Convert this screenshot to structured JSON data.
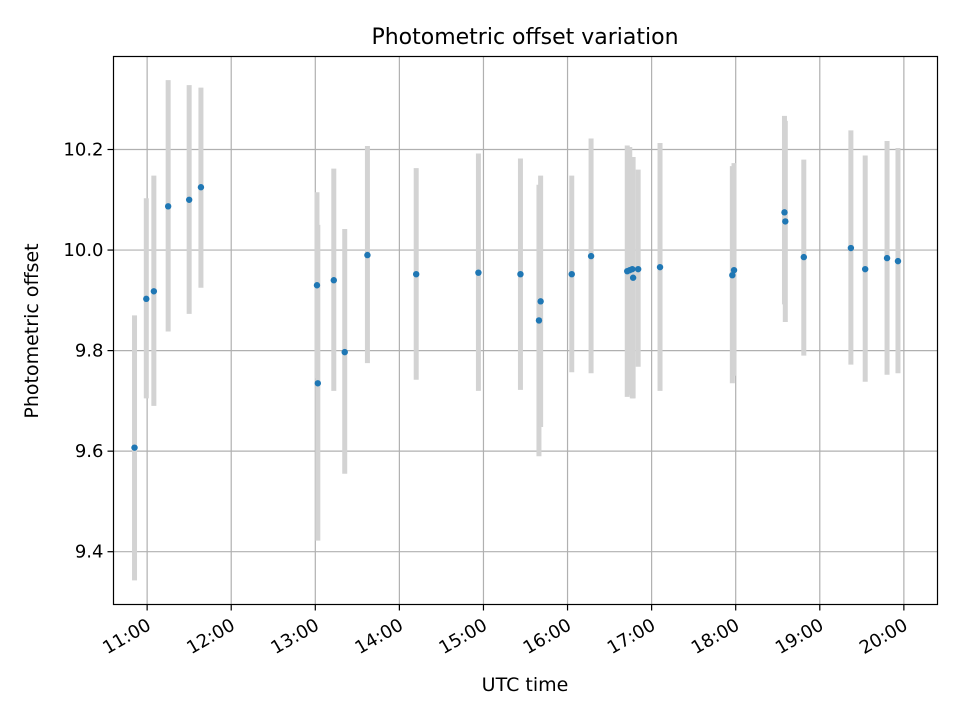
{
  "chart_data": {
    "type": "scatter",
    "title": "Photometric offset variation",
    "xlabel": "UTC time",
    "ylabel": "Photometric offset",
    "xlim_hours": [
      10.6,
      20.4
    ],
    "ylim": [
      9.295,
      10.385
    ],
    "grid": true,
    "x_ticks": [
      {
        "hour": 11,
        "label": "11:00"
      },
      {
        "hour": 12,
        "label": "12:00"
      },
      {
        "hour": 13,
        "label": "13:00"
      },
      {
        "hour": 14,
        "label": "14:00"
      },
      {
        "hour": 15,
        "label": "15:00"
      },
      {
        "hour": 16,
        "label": "16:00"
      },
      {
        "hour": 17,
        "label": "17:00"
      },
      {
        "hour": 18,
        "label": "18:00"
      },
      {
        "hour": 19,
        "label": "19:00"
      },
      {
        "hour": 20,
        "label": "20:00"
      }
    ],
    "y_ticks": [
      {
        "value": 9.4,
        "label": "9.4"
      },
      {
        "value": 9.6,
        "label": "9.6"
      },
      {
        "value": 9.8,
        "label": "9.8"
      },
      {
        "value": 10.0,
        "label": "10.0"
      },
      {
        "value": 10.2,
        "label": "10.2"
      }
    ],
    "colors": {
      "points": "#1f77b4",
      "errorbars": "#d3d3d3",
      "grid": "#b0b0b0"
    },
    "points": [
      {
        "x": 10.85,
        "y": 9.607,
        "lo": 9.343,
        "hi": 9.87
      },
      {
        "x": 10.99,
        "y": 9.903,
        "lo": 9.705,
        "hi": 10.103
      },
      {
        "x": 11.08,
        "y": 9.918,
        "lo": 9.69,
        "hi": 10.148
      },
      {
        "x": 11.25,
        "y": 10.087,
        "lo": 9.838,
        "hi": 10.338
      },
      {
        "x": 11.5,
        "y": 10.1,
        "lo": 9.873,
        "hi": 10.328
      },
      {
        "x": 11.64,
        "y": 10.125,
        "lo": 9.925,
        "hi": 10.323
      },
      {
        "x": 13.02,
        "y": 9.93,
        "lo": 9.745,
        "hi": 10.115
      },
      {
        "x": 13.03,
        "y": 9.735,
        "lo": 9.422,
        "hi": 10.05
      },
      {
        "x": 13.22,
        "y": 9.94,
        "lo": 9.72,
        "hi": 10.162
      },
      {
        "x": 13.35,
        "y": 9.797,
        "lo": 9.555,
        "hi": 10.042
      },
      {
        "x": 13.62,
        "y": 9.99,
        "lo": 9.775,
        "hi": 10.207
      },
      {
        "x": 14.2,
        "y": 9.952,
        "lo": 9.742,
        "hi": 10.163
      },
      {
        "x": 14.94,
        "y": 9.955,
        "lo": 9.72,
        "hi": 10.192
      },
      {
        "x": 15.44,
        "y": 9.952,
        "lo": 9.722,
        "hi": 10.182
      },
      {
        "x": 15.66,
        "y": 9.86,
        "lo": 9.59,
        "hi": 10.13
      },
      {
        "x": 15.68,
        "y": 9.898,
        "lo": 9.648,
        "hi": 10.148
      },
      {
        "x": 16.05,
        "y": 9.952,
        "lo": 9.757,
        "hi": 10.148
      },
      {
        "x": 16.28,
        "y": 9.988,
        "lo": 9.755,
        "hi": 10.222
      },
      {
        "x": 16.71,
        "y": 9.958,
        "lo": 9.708,
        "hi": 10.208
      },
      {
        "x": 16.74,
        "y": 9.96,
        "lo": 9.712,
        "hi": 10.205
      },
      {
        "x": 16.77,
        "y": 9.962,
        "lo": 9.705,
        "hi": 10.182
      },
      {
        "x": 16.78,
        "y": 9.945,
        "lo": 9.705,
        "hi": 10.185
      },
      {
        "x": 16.84,
        "y": 9.962,
        "lo": 9.768,
        "hi": 10.16
      },
      {
        "x": 17.1,
        "y": 9.966,
        "lo": 9.72,
        "hi": 10.213
      },
      {
        "x": 17.96,
        "y": 9.95,
        "lo": 9.735,
        "hi": 10.167
      },
      {
        "x": 17.98,
        "y": 9.96,
        "lo": 9.75,
        "hi": 10.173
      },
      {
        "x": 18.58,
        "y": 10.075,
        "lo": 9.892,
        "hi": 10.267
      },
      {
        "x": 18.59,
        "y": 10.057,
        "lo": 9.857,
        "hi": 10.257
      },
      {
        "x": 18.81,
        "y": 9.986,
        "lo": 9.79,
        "hi": 10.18
      },
      {
        "x": 19.37,
        "y": 10.004,
        "lo": 9.772,
        "hi": 10.238
      },
      {
        "x": 19.54,
        "y": 9.962,
        "lo": 9.738,
        "hi": 10.188
      },
      {
        "x": 19.8,
        "y": 9.984,
        "lo": 9.752,
        "hi": 10.217
      },
      {
        "x": 19.93,
        "y": 9.978,
        "lo": 9.755,
        "hi": 10.203
      }
    ]
  }
}
